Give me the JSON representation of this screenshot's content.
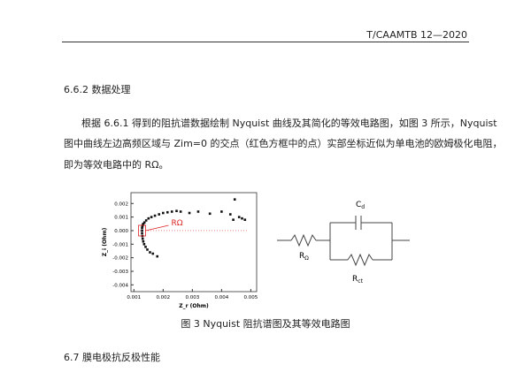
{
  "header": {
    "code": "T/CAAMTB 12—2020"
  },
  "section": {
    "heading": "6.6.2 数据处理",
    "paragraph": [
      "根据 6.6.1 得到的阻抗谱数据绘制 Nyquist 曲线及其简化的等效电路图，如图 3 所示，Nyquist",
      "图中曲线左边高频区域与 Zim=0 的交点（红色方框中的点）实部坐标近似为单电池的欧姆极化电阻，",
      "即为等效电路中的 RΩ。"
    ]
  },
  "figure": {
    "plot": {
      "type": "scatter",
      "xlabel": "Z_r (Ohm)",
      "ylabel": "Z_i (Ohm)",
      "annotation": "RΩ",
      "xlim": [
        0.0009,
        0.0052
      ],
      "ylim": [
        -0.0045,
        0.0028
      ],
      "xticks": [
        0.001,
        0.002,
        0.003,
        0.004,
        0.005
      ],
      "yticks": [
        0.002,
        0.001,
        {
          "value": 0,
          "label": "0.000"
        },
        -0.001,
        -0.002,
        -0.003,
        -0.004
      ],
      "x": [
        0.00128,
        0.00128,
        0.00129,
        0.0013,
        0.00132,
        0.00136,
        0.00142,
        0.0015,
        0.0016,
        0.00172,
        0.00186,
        0.002,
        0.00215,
        0.0023,
        0.00246,
        0.0026,
        0.0029,
        0.0032,
        0.0036,
        0.004,
        0.0043,
        0.0044,
        0.0046,
        0.0047,
        0.0048,
        0.00445,
        0.00128,
        0.00129,
        0.0013,
        0.00132,
        0.00135,
        0.0014,
        0.00146,
        0.00155,
        0.00165,
        0.0018
      ],
      "y": [
        0,
        0.0002,
        0.0003,
        0.0004,
        0.0005,
        0.0006,
        0.00075,
        0.0009,
        0.001,
        0.0011,
        0.0012,
        0.0013,
        0.00135,
        0.0014,
        0.00145,
        0.0014,
        0.0013,
        0.0014,
        0.00125,
        0.0014,
        0.0012,
        0.0008,
        0.001,
        0.0009,
        0.0008,
        0.0023,
        -0.0002,
        -0.0004,
        -0.0006,
        -0.0008,
        -0.001,
        -0.0012,
        -0.0014,
        -0.0016,
        -0.0017,
        -0.0019
      ]
    },
    "circuit": {
      "capacitor": {
        "main": "C",
        "sub": "d"
      },
      "r_ohm": {
        "main": "R",
        "sub": "Ω"
      },
      "r_ct": {
        "main": "R",
        "sub": "ct"
      }
    },
    "caption": "图 3 Nyquist 阻抗谱图及其等效电路图"
  },
  "next_section": {
    "heading": "6.7 膜电极抗反极性能"
  }
}
